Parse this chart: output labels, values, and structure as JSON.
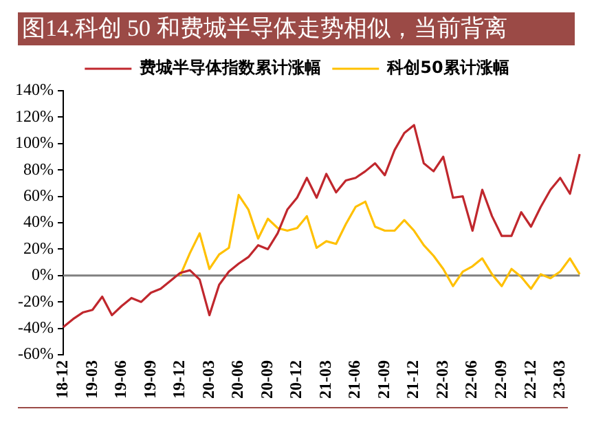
{
  "chart_data": {
    "type": "line",
    "title": "图14.科创 50 和费城半导体走势相似，当前背离",
    "categories": [
      "18-12",
      null,
      null,
      "19-03",
      null,
      null,
      "19-06",
      null,
      null,
      "19-09",
      null,
      null,
      "19-12",
      null,
      null,
      "20-03",
      null,
      null,
      "20-06",
      null,
      null,
      "20-09",
      null,
      null,
      "20-12",
      null,
      null,
      "21-03",
      null,
      null,
      "21-06",
      null,
      null,
      "21-09",
      null,
      null,
      "21-12",
      null,
      null,
      "22-03",
      null,
      null,
      "22-06",
      null,
      null,
      "22-09",
      null,
      null,
      "22-12",
      null,
      null,
      "23-03",
      null,
      null
    ],
    "ylim": [
      -60,
      140
    ],
    "yticks": [
      {
        "value": -60,
        "label": "-60%"
      },
      {
        "value": -40,
        "label": "-40%"
      },
      {
        "value": -20,
        "label": "-20%"
      },
      {
        "value": 0,
        "label": "0%"
      },
      {
        "value": 20,
        "label": "20%"
      },
      {
        "value": 40,
        "label": "40%"
      },
      {
        "value": 60,
        "label": "60%"
      },
      {
        "value": 80,
        "label": "80%"
      },
      {
        "value": 100,
        "label": "100%"
      },
      {
        "value": 120,
        "label": "120%"
      },
      {
        "value": 140,
        "label": "140%"
      }
    ],
    "grid": false,
    "legend": "top",
    "marker": "none",
    "line_style": "solid",
    "ref_lines": [
      {
        "axis": "y",
        "value": 0,
        "color": "#808080"
      }
    ],
    "series": [
      {
        "name": "费城半导体指数累计涨幅",
        "color": "#c0272d",
        "values": [
          -39,
          -33,
          -28,
          -26,
          -16,
          -30,
          -23,
          -17,
          -20,
          -13,
          -10,
          -4,
          2,
          4,
          -3,
          -30,
          -7,
          3,
          9,
          14,
          23,
          20,
          32,
          50,
          59,
          74,
          59,
          77,
          63,
          72,
          74,
          79,
          85,
          76,
          95,
          108,
          114,
          85,
          79,
          90,
          59,
          60,
          34,
          65,
          45,
          30,
          30,
          48,
          37,
          52,
          65,
          74,
          62,
          92
        ]
      },
      {
        "name": "科创50累计涨幅",
        "color": "#ffc000",
        "values": [
          null,
          null,
          null,
          null,
          null,
          null,
          null,
          null,
          null,
          null,
          null,
          null,
          0,
          17,
          32,
          5,
          16,
          21,
          61,
          50,
          28,
          43,
          36,
          34,
          36,
          45,
          21,
          26,
          24,
          39,
          52,
          56,
          37,
          34,
          34,
          42,
          34,
          23,
          15,
          5,
          -8,
          3,
          7,
          13,
          1,
          -8,
          5,
          -1,
          -10,
          1,
          -2,
          3,
          13,
          1
        ]
      }
    ]
  }
}
